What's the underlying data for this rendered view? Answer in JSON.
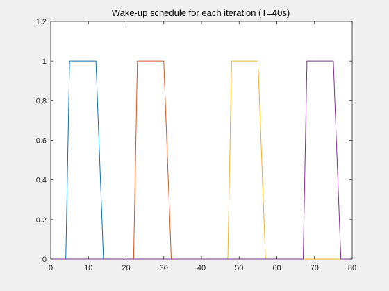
{
  "chart_data": {
    "type": "line",
    "title": "Wake-up schedule for each iteration  (T=40s)",
    "xlabel": "",
    "ylabel": "",
    "xlim": [
      0,
      80
    ],
    "ylim": [
      0,
      1.2
    ],
    "grid": false,
    "legend": "none",
    "xticks": [
      "0",
      "10",
      "20",
      "30",
      "40",
      "50",
      "60",
      "70",
      "80"
    ],
    "yticks": [
      "0",
      "0.2",
      "0.4",
      "0.6",
      "0.8",
      "1",
      "1.2"
    ],
    "series": [
      {
        "color": "#0072bd",
        "x": [
          0,
          4,
          5,
          12,
          14,
          80
        ],
        "y": [
          0,
          0,
          1,
          1,
          0,
          0
        ]
      },
      {
        "color": "#d95319",
        "x": [
          0,
          22,
          23,
          30,
          32,
          80
        ],
        "y": [
          0,
          0,
          1,
          1,
          0,
          0
        ]
      },
      {
        "color": "#edb120",
        "x": [
          0,
          47,
          48,
          55,
          57,
          80
        ],
        "y": [
          0,
          0,
          1,
          1,
          0,
          0
        ]
      },
      {
        "color": "#7e2f8e",
        "x": [
          0,
          67,
          68,
          75,
          77,
          80
        ],
        "y": [
          0,
          0,
          1,
          1,
          0,
          0
        ]
      }
    ]
  }
}
